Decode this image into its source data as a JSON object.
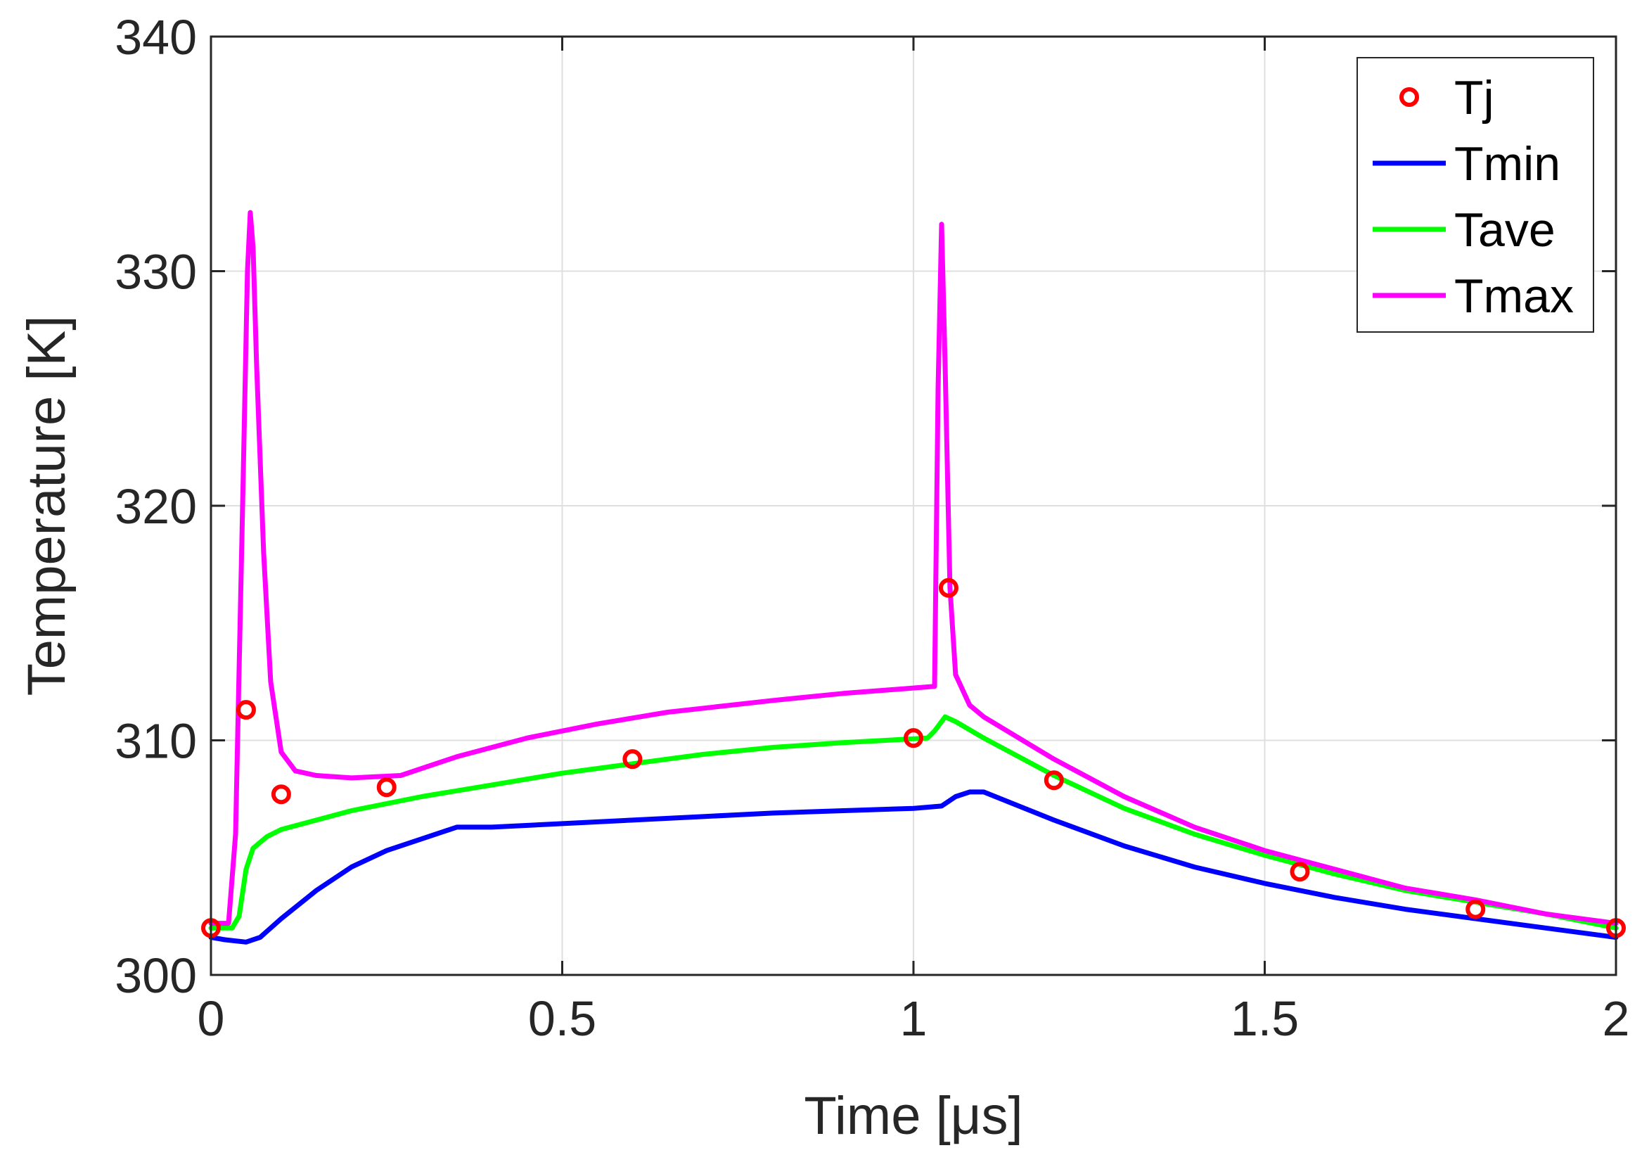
{
  "chart_data": {
    "type": "line",
    "title": "",
    "xlabel": "Time [μs]",
    "ylabel": "Temperature [K]",
    "xlim": [
      0,
      2
    ],
    "ylim": [
      300,
      340
    ],
    "xticks": [
      0,
      0.5,
      1,
      1.5,
      2
    ],
    "xtick_labels": [
      "0",
      "0.5",
      "1",
      "1.5",
      "2"
    ],
    "yticks": [
      300,
      310,
      320,
      330,
      340
    ],
    "ytick_labels": [
      "300",
      "310",
      "320",
      "330",
      "340"
    ],
    "grid": true,
    "legend_position": "top-right",
    "series": [
      {
        "name": "Tj",
        "style": "markers",
        "color": "#ff0000",
        "points": [
          [
            0,
            302
          ],
          [
            0.05,
            311.3
          ],
          [
            0.1,
            307.7
          ],
          [
            0.25,
            308
          ],
          [
            0.6,
            309.2
          ],
          [
            1.0,
            310.1
          ],
          [
            1.05,
            316.5
          ],
          [
            1.2,
            308.3
          ],
          [
            1.55,
            304.4
          ],
          [
            1.8,
            302.8
          ],
          [
            2.0,
            302
          ]
        ]
      },
      {
        "name": "Tmin",
        "style": "line",
        "color": "#0000ff",
        "points": [
          [
            0,
            301.6
          ],
          [
            0.02,
            301.5
          ],
          [
            0.05,
            301.4
          ],
          [
            0.07,
            301.6
          ],
          [
            0.1,
            302.4
          ],
          [
            0.15,
            303.6
          ],
          [
            0.2,
            304.6
          ],
          [
            0.25,
            305.3
          ],
          [
            0.3,
            305.8
          ],
          [
            0.35,
            306.3
          ],
          [
            0.4,
            306.3
          ],
          [
            0.6,
            306.6
          ],
          [
            0.8,
            306.9
          ],
          [
            1.0,
            307.1
          ],
          [
            1.04,
            307.2
          ],
          [
            1.06,
            307.6
          ],
          [
            1.08,
            307.8
          ],
          [
            1.1,
            307.8
          ],
          [
            1.2,
            306.6
          ],
          [
            1.3,
            305.5
          ],
          [
            1.4,
            304.6
          ],
          [
            1.5,
            303.9
          ],
          [
            1.6,
            303.3
          ],
          [
            1.7,
            302.8
          ],
          [
            1.8,
            302.4
          ],
          [
            1.9,
            302.0
          ],
          [
            2.0,
            301.6
          ]
        ]
      },
      {
        "name": "Tave",
        "style": "line",
        "color": "#00ff00",
        "points": [
          [
            0,
            302
          ],
          [
            0.03,
            302
          ],
          [
            0.04,
            302.5
          ],
          [
            0.05,
            304.5
          ],
          [
            0.06,
            305.4
          ],
          [
            0.08,
            305.9
          ],
          [
            0.1,
            306.2
          ],
          [
            0.2,
            307.0
          ],
          [
            0.3,
            307.6
          ],
          [
            0.4,
            308.1
          ],
          [
            0.5,
            308.6
          ],
          [
            0.6,
            309.0
          ],
          [
            0.7,
            309.4
          ],
          [
            0.8,
            309.7
          ],
          [
            0.9,
            309.9
          ],
          [
            1.02,
            310.1
          ],
          [
            1.03,
            310.4
          ],
          [
            1.045,
            311
          ],
          [
            1.06,
            310.8
          ],
          [
            1.1,
            310.1
          ],
          [
            1.2,
            308.5
          ],
          [
            1.3,
            307.1
          ],
          [
            1.4,
            306.0
          ],
          [
            1.5,
            305.1
          ],
          [
            1.6,
            304.3
          ],
          [
            1.7,
            303.6
          ],
          [
            1.8,
            303.1
          ],
          [
            1.9,
            302.6
          ],
          [
            2.0,
            302.0
          ]
        ]
      },
      {
        "name": "Tmax",
        "style": "line",
        "color": "#ff00ff",
        "points": [
          [
            0,
            302.2
          ],
          [
            0.025,
            302.2
          ],
          [
            0.035,
            306
          ],
          [
            0.045,
            320
          ],
          [
            0.052,
            330
          ],
          [
            0.056,
            332.5
          ],
          [
            0.06,
            331
          ],
          [
            0.065,
            326
          ],
          [
            0.075,
            318
          ],
          [
            0.085,
            312.5
          ],
          [
            0.1,
            309.5
          ],
          [
            0.12,
            308.7
          ],
          [
            0.15,
            308.5
          ],
          [
            0.2,
            308.4
          ],
          [
            0.27,
            308.5
          ],
          [
            0.35,
            309.3
          ],
          [
            0.45,
            310.1
          ],
          [
            0.55,
            310.7
          ],
          [
            0.65,
            311.2
          ],
          [
            0.8,
            311.7
          ],
          [
            0.9,
            312.0
          ],
          [
            1.03,
            312.3
          ],
          [
            1.035,
            325
          ],
          [
            1.04,
            332
          ],
          [
            1.045,
            326
          ],
          [
            1.052,
            316.5
          ],
          [
            1.06,
            312.8
          ],
          [
            1.08,
            311.5
          ],
          [
            1.1,
            311.0
          ],
          [
            1.2,
            309.2
          ],
          [
            1.3,
            307.6
          ],
          [
            1.4,
            306.3
          ],
          [
            1.5,
            305.3
          ],
          [
            1.6,
            304.5
          ],
          [
            1.7,
            303.7
          ],
          [
            1.8,
            303.2
          ],
          [
            1.9,
            302.6
          ],
          [
            2.0,
            302.2
          ]
        ]
      }
    ]
  }
}
